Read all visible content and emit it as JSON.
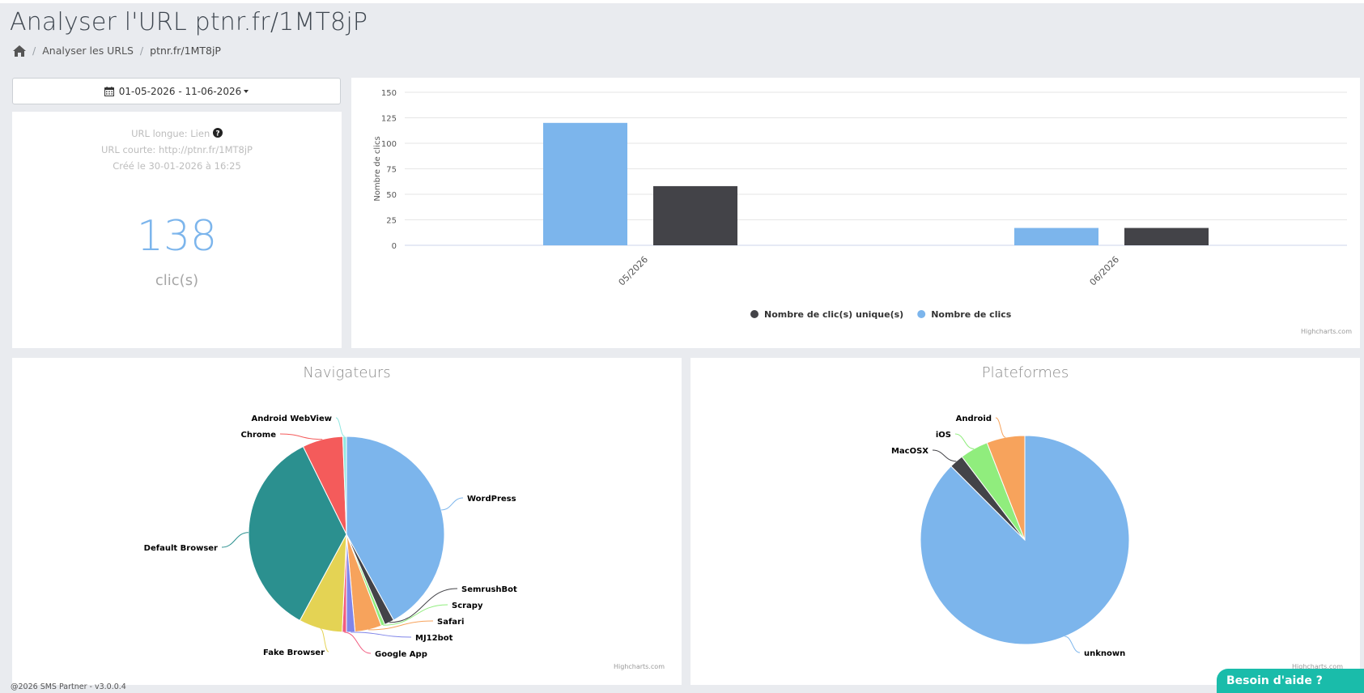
{
  "page": {
    "title": "Analyser l'URL ptnr.fr/1MT8jP",
    "breadcrumb": {
      "home_icon": "home-icon",
      "parent": "Analyser les URLS",
      "current": "ptnr.fr/1MT8jP"
    }
  },
  "date_range": {
    "label": "01-05-2026 - 11-06-2026",
    "icon": "calendar-icon"
  },
  "summary": {
    "long_url": "URL longue: Lien",
    "long_url_icon": "question-circle-icon",
    "short_url": "URL courte: http://ptnr.fr/1MT8jP",
    "created": "Créé le 30-01-2026 à 16:25",
    "count": "138",
    "unit": "clic(s)"
  },
  "chart_data": [
    {
      "type": "bar",
      "title": "",
      "categories": [
        "05/2026",
        "06/2026"
      ],
      "series": [
        {
          "name": "Nombre de clics",
          "values": [
            120,
            17
          ],
          "color": "#7cb5ec"
        },
        {
          "name": "Nombre de clic(s) unique(s)",
          "values": [
            58,
            17
          ],
          "color": "#434348"
        }
      ],
      "legend_order": [
        "Nombre de clic(s) unique(s)",
        "Nombre de clics"
      ],
      "xlabel": "",
      "ylabel": "Nombre de clics",
      "ylim": [
        0,
        150
      ],
      "yticks": [
        0,
        25,
        50,
        75,
        100,
        125,
        150
      ],
      "grid": true,
      "legend": "bottom-center",
      "credits": "Highcharts.com"
    },
    {
      "type": "pie",
      "title": "Navigateurs",
      "slices": [
        {
          "label": "WordPress",
          "value": 42.0,
          "color": "#7cb5ec"
        },
        {
          "label": "SemrushBot",
          "value": 1.6,
          "color": "#434348"
        },
        {
          "label": "Scrapy",
          "value": 0.6,
          "color": "#90ed7d"
        },
        {
          "label": "Safari",
          "value": 4.4,
          "color": "#f7a35c"
        },
        {
          "label": "MJ12bot",
          "value": 1.4,
          "color": "#8085e9"
        },
        {
          "label": "Google App",
          "value": 0.7,
          "color": "#f15c80"
        },
        {
          "label": "Fake Browser",
          "value": 7.2,
          "color": "#e4d354"
        },
        {
          "label": "Default Browser",
          "value": 34.8,
          "color": "#2b908f"
        },
        {
          "label": "Chrome",
          "value": 6.7,
          "color": "#f45b5b"
        },
        {
          "label": "Android WebView",
          "value": 0.6,
          "color": "#91e8e1"
        }
      ],
      "credits": "Highcharts.com"
    },
    {
      "type": "pie",
      "title": "Plateformes",
      "slices": [
        {
          "label": "unknown",
          "value": 87.5,
          "color": "#7cb5ec"
        },
        {
          "label": "MacOSX",
          "value": 2.2,
          "color": "#434348"
        },
        {
          "label": "iOS",
          "value": 4.4,
          "color": "#90ed7d"
        },
        {
          "label": "Android",
          "value": 5.9,
          "color": "#f7a35c"
        }
      ],
      "credits": "Highcharts.com"
    }
  ],
  "footer": {
    "text": "@2026 SMS Partner - v3.0.0.4"
  },
  "help": {
    "label": "Besoin d'aide ?"
  }
}
